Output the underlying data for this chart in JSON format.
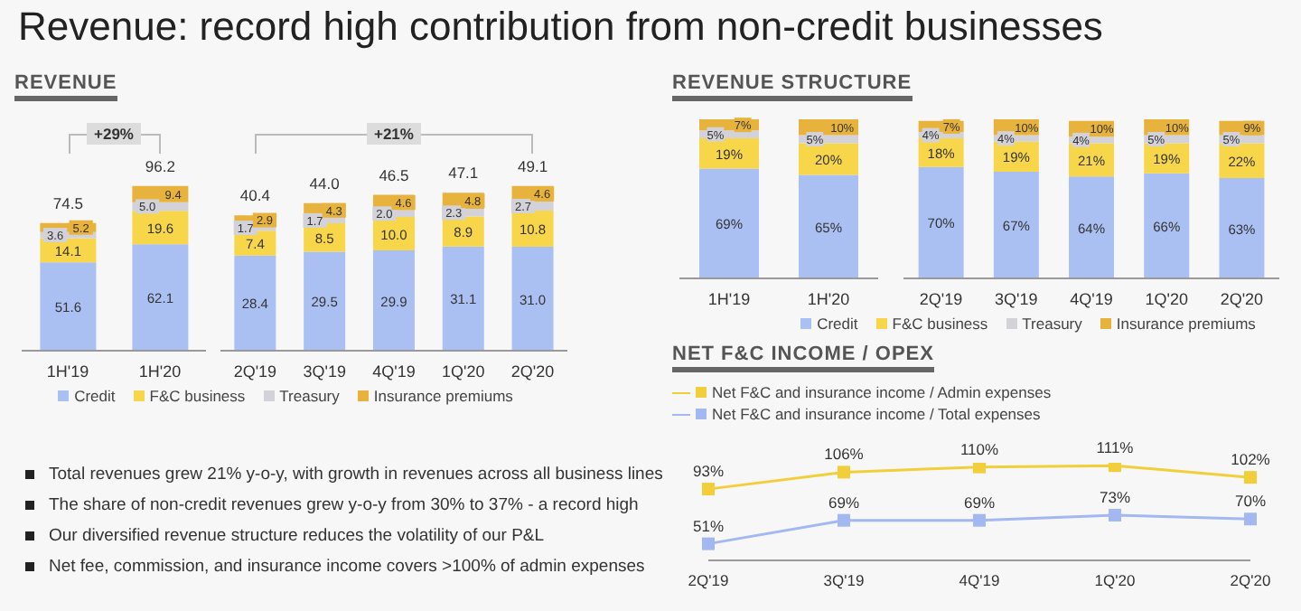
{
  "chart_data": [
    {
      "type": "bar",
      "title": "REVENUE",
      "stacked": true,
      "categories": [
        "1H'19",
        "1H'20"
      ],
      "totals": [
        "74.5",
        "96.2"
      ],
      "annotations": [
        "+29%"
      ],
      "series": [
        {
          "color": "#aabff2",
          "values": [
            51.6,
            62.1
          ],
          "value_labels": [
            "51.6",
            "62.1"
          ]
        },
        {
          "color": "#f7d64a",
          "values": [
            14.1,
            19.6
          ],
          "value_labels": [
            "14.1",
            "19.6"
          ]
        },
        {
          "color": "#d2d2d8",
          "values": [
            3.6,
            5.0
          ],
          "value_labels": [
            "3.6",
            "5.0"
          ]
        },
        {
          "color": "#e8b33c",
          "values": [
            5.2,
            9.4
          ],
          "value_labels": [
            "5.2",
            "9.4"
          ]
        }
      ]
    },
    {
      "type": "bar",
      "stacked": true,
      "categories": [
        "2Q'19",
        "3Q'19",
        "4Q'19",
        "1Q'20",
        "2Q'20"
      ],
      "totals": [
        "40.4",
        "44.0",
        "46.5",
        "47.1",
        "49.1"
      ],
      "annotations": [
        "+21%"
      ],
      "legend": "bottom",
      "series": [
        {
          "name": "Credit",
          "color": "#aabff2",
          "values": [
            28.4,
            29.5,
            29.9,
            31.1,
            31.0
          ],
          "value_labels": [
            "28.4",
            "29.5",
            "29.9",
            "31.1",
            "31.0"
          ]
        },
        {
          "name": "F&C business",
          "color": "#f7d64a",
          "values": [
            7.4,
            8.5,
            10.0,
            8.9,
            10.8
          ],
          "value_labels": [
            "7.4",
            "8.5",
            "10.0",
            "8.9",
            "10.8"
          ]
        },
        {
          "name": "Treasury",
          "color": "#d2d2d8",
          "values": [
            1.7,
            1.7,
            2.0,
            2.3,
            2.7
          ],
          "value_labels": [
            "1.7",
            "1.7",
            "2.0",
            "2.3",
            "2.7"
          ]
        },
        {
          "name": "Insurance premiums",
          "color": "#e8b33c",
          "values": [
            2.9,
            4.3,
            4.6,
            4.8,
            4.6
          ],
          "value_labels": [
            "2.9",
            "4.3",
            "4.6",
            "4.8",
            "4.6"
          ]
        }
      ]
    },
    {
      "type": "bar",
      "title": "REVENUE STRUCTURE",
      "stacked": true,
      "categories": [
        "1H'19",
        "1H'20"
      ],
      "series": [
        {
          "color": "#aabff2",
          "values": [
            69,
            65
          ],
          "value_labels": [
            "69%",
            "65%"
          ]
        },
        {
          "color": "#f7d64a",
          "values": [
            19,
            20
          ],
          "value_labels": [
            "19%",
            "20%"
          ]
        },
        {
          "color": "#d2d2d8",
          "values": [
            5,
            5
          ],
          "value_labels": [
            "5%",
            "5%"
          ]
        },
        {
          "color": "#e8b33c",
          "values": [
            7,
            10
          ],
          "value_labels": [
            "7%",
            "10%"
          ]
        }
      ]
    },
    {
      "type": "bar",
      "stacked": true,
      "categories": [
        "2Q'19",
        "3Q'19",
        "4Q'19",
        "1Q'20",
        "2Q'20"
      ],
      "legend": "bottom",
      "series": [
        {
          "name": "Credit",
          "color": "#aabff2",
          "values": [
            70,
            67,
            64,
            66,
            63
          ],
          "value_labels": [
            "70%",
            "67%",
            "64%",
            "66%",
            "63%"
          ]
        },
        {
          "name": "F&C business",
          "color": "#f7d64a",
          "values": [
            18,
            19,
            21,
            19,
            22
          ],
          "value_labels": [
            "18%",
            "19%",
            "21%",
            "19%",
            "22%"
          ]
        },
        {
          "name": "Treasury",
          "color": "#d2d2d8",
          "values": [
            4,
            4,
            4,
            5,
            5
          ],
          "value_labels": [
            "4%",
            "4%",
            "4%",
            "5%",
            "5%"
          ]
        },
        {
          "name": "Insurance premiums",
          "color": "#e8b33c",
          "values": [
            7,
            10,
            10,
            10,
            9
          ],
          "value_labels": [
            "7%",
            "10%",
            "10%",
            "10%",
            "9%"
          ]
        }
      ]
    },
    {
      "type": "line",
      "title": "NET F&C INCOME / OPEX",
      "categories": [
        "2Q'19",
        "3Q'19",
        "4Q'19",
        "1Q'20",
        "2Q'20"
      ],
      "legend": "top left",
      "marker": "square",
      "series": [
        {
          "name": "Net F&C and insurance income / Admin expenses",
          "color": "#f2cf3a",
          "values": [
            93,
            106,
            110,
            111,
            102
          ],
          "value_labels": [
            "93%",
            "106%",
            "110%",
            "111%",
            "102%"
          ]
        },
        {
          "name": "Net F&C and insurance income / Total expenses",
          "color": "#a3b8f0",
          "values": [
            51,
            69,
            69,
            73,
            70
          ],
          "value_labels": [
            "51%",
            "69%",
            "69%",
            "73%",
            "70%"
          ]
        }
      ]
    },
    {
      "type": "other",
      "title": "Revenue: record high contribution from non-credit businesses",
      "annotations": [
        "Total revenues grew 21% y-o-y, with growth in revenues across all business lines",
        "The share of non-credit revenues grew y-o-y from 30% to 37% - a record high",
        "Our diversified revenue structure reduces the volatility of our P&L",
        "Net fee, commission, and insurance income covers >100% of admin expenses"
      ]
    }
  ]
}
